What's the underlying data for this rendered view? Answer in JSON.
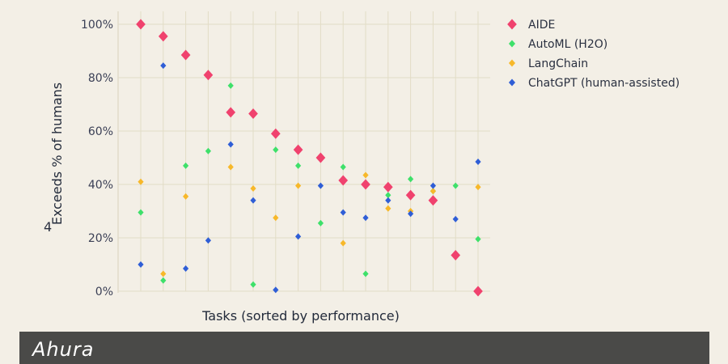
{
  "chart_data": {
    "type": "scatter",
    "xlabel": "Tasks (sorted by performance)",
    "ylabel": "Exceeds % of humans",
    "ylim": [
      0,
      100
    ],
    "yticks": [
      0,
      20,
      40,
      60,
      80,
      100
    ],
    "ytick_labels": [
      "0%",
      "20%",
      "40%",
      "60%",
      "80%",
      "100%"
    ],
    "grid": true,
    "legend_position": "right",
    "x": [
      1,
      2,
      3,
      4,
      5,
      6,
      7,
      8,
      9,
      10,
      11,
      12,
      13,
      14,
      15,
      16
    ],
    "series": [
      {
        "name": "AIDE",
        "color": "#f0426e",
        "marker": "diamond-large",
        "values": [
          100,
          95.5,
          88.5,
          81,
          67,
          66.5,
          59,
          53,
          50,
          41.5,
          40,
          39,
          36,
          34,
          13.5,
          0
        ]
      },
      {
        "name": "AutoML (H2O)",
        "color": "#3ee06a",
        "marker": "diamond",
        "values": [
          29.5,
          4,
          47,
          52.5,
          77,
          2.5,
          53,
          47,
          25.5,
          46.5,
          6.5,
          36,
          42,
          37.5,
          39.5,
          19.5
        ]
      },
      {
        "name": "LangChain",
        "color": "#f7b82a",
        "marker": "diamond",
        "values": [
          41,
          6.5,
          35.5,
          null,
          46.5,
          38.5,
          27.5,
          39.5,
          null,
          18,
          43.5,
          31,
          30,
          37.5,
          null,
          39
        ]
      },
      {
        "name": "ChatGPT (human-assisted)",
        "color": "#2f5ed6",
        "marker": "diamond",
        "values": [
          10,
          84.5,
          8.5,
          19,
          55,
          34,
          0.5,
          20.5,
          39.5,
          29.5,
          27.5,
          34,
          29,
          39.5,
          27,
          48.5
        ]
      }
    ],
    "stray_label": "4"
  },
  "footer": {
    "logo_text": "Ahura",
    "logo_color": "#ffffff",
    "bar_color": "#4a4a48"
  }
}
